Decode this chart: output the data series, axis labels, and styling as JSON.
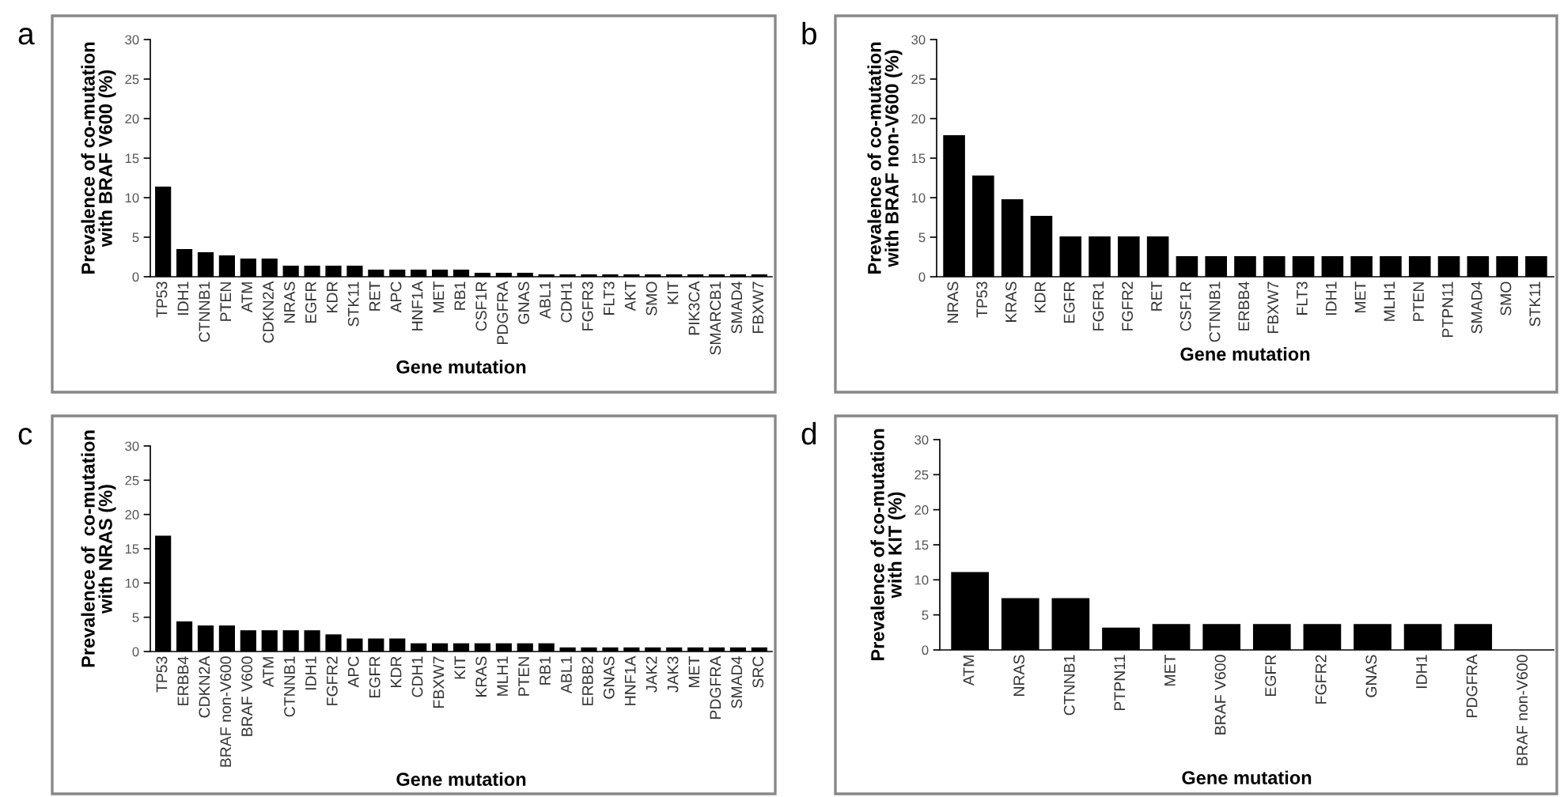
{
  "chart_data": [
    {
      "type": "bar",
      "title": "a",
      "xlabel": "Gene mutation",
      "ylabel": "Prevalence of co-mutation\nwith BRAF V600 (%)",
      "color": "#000000",
      "ylim": [
        0,
        30
      ],
      "yticks": [
        0,
        5,
        10,
        15,
        20,
        25,
        30
      ],
      "grid": false,
      "categories": [
        "TP53",
        "IDH1",
        "CTNNB1",
        "PTEN",
        "ATM",
        "CDKN2A",
        "NRAS",
        "EGFR",
        "KDR",
        "STK11",
        "RET",
        "APC",
        "HNF1A",
        "MET",
        "RB1",
        "CSF1R",
        "PDGFRA",
        "GNAS",
        "ABL1",
        "CDH1",
        "FGFR3",
        "FLT3",
        "AKT",
        "SMO",
        "KIT",
        "PIK3CA",
        "SMARCB1",
        "SMAD4",
        "FBXW7"
      ],
      "values": [
        11.4,
        3.5,
        3.1,
        2.7,
        2.3,
        2.3,
        1.4,
        1.4,
        1.4,
        1.4,
        0.9,
        0.9,
        0.9,
        0.9,
        0.9,
        0.5,
        0.5,
        0.5,
        0.3,
        0.3,
        0.3,
        0.3,
        0.3,
        0.3,
        0.3,
        0.3,
        0.3,
        0.3,
        0.3
      ]
    },
    {
      "type": "bar",
      "title": "b",
      "xlabel": "Gene mutation",
      "ylabel": "Prevalence of co-mutation\nwith BRAF non-V600 (%)",
      "color": "#000000",
      "ylim": [
        0,
        30
      ],
      "yticks": [
        0,
        5,
        10,
        15,
        20,
        25,
        30
      ],
      "grid": false,
      "categories": [
        "NRAS",
        "TP53",
        "KRAS",
        "KDR",
        "EGFR",
        "FGFR1",
        "FGFR2",
        "RET",
        "CSF1R",
        "CTNNB1",
        "ERBB4",
        "FBXW7",
        "FLT3",
        "IDH1",
        "MET",
        "MLH1",
        "PTEN",
        "PTPN11",
        "SMAD4",
        "SMO",
        "STK11"
      ],
      "values": [
        17.9,
        12.8,
        9.8,
        7.7,
        5.1,
        5.1,
        5.1,
        5.1,
        2.6,
        2.6,
        2.6,
        2.6,
        2.6,
        2.6,
        2.6,
        2.6,
        2.6,
        2.6,
        2.6,
        2.6,
        2.6
      ]
    },
    {
      "type": "bar",
      "title": "c",
      "xlabel": "Gene mutation",
      "ylabel": "Prevalence of  co-mutation\nwith NRAS (%)",
      "color": "#000000",
      "ylim": [
        0,
        30
      ],
      "yticks": [
        0,
        5,
        10,
        15,
        20,
        25,
        30
      ],
      "grid": false,
      "categories": [
        "TP53",
        "ERBB4",
        "CDKN2A",
        "BRAF non-V600",
        "BRAF V600",
        "ATM",
        "CTNNB1",
        "IDH1",
        "FGFR2",
        "APC",
        "EGFR",
        "KDR",
        "CDH1",
        "FBXW7",
        "KIT",
        "KRAS",
        "MLH1",
        "PTEN",
        "RB1",
        "ABL1",
        "ERBB2",
        "GNAS",
        "HNF1A",
        "JAK2",
        "JAK3",
        "MET",
        "PDGFRA",
        "SMAD4",
        "SRC"
      ],
      "values": [
        16.9,
        4.4,
        3.8,
        3.8,
        3.1,
        3.1,
        3.1,
        3.1,
        2.5,
        1.9,
        1.9,
        1.9,
        1.2,
        1.2,
        1.2,
        1.2,
        1.2,
        1.2,
        1.2,
        0.6,
        0.6,
        0.6,
        0.6,
        0.6,
        0.6,
        0.6,
        0.6,
        0.6,
        0.6
      ]
    },
    {
      "type": "bar",
      "title": "d",
      "xlabel": "Gene mutation",
      "ylabel": "Prevalence of co-mutation\nwith KIT (%)",
      "color": "#000000",
      "ylim": [
        0,
        30
      ],
      "yticks": [
        0,
        5,
        10,
        15,
        20,
        25,
        30
      ],
      "grid": false,
      "categories": [
        "ATM",
        "NRAS",
        "CTNNB1",
        "PTPN11",
        "MET",
        "BRAF V600",
        "EGFR",
        "FGFR2",
        "GNAS",
        "IDH1",
        "PDGFRA",
        "BRAF non-V600"
      ],
      "values": [
        11.1,
        7.4,
        7.4,
        3.2,
        3.7,
        3.7,
        3.7,
        3.7,
        3.7,
        3.7,
        3.7,
        0
      ]
    }
  ]
}
